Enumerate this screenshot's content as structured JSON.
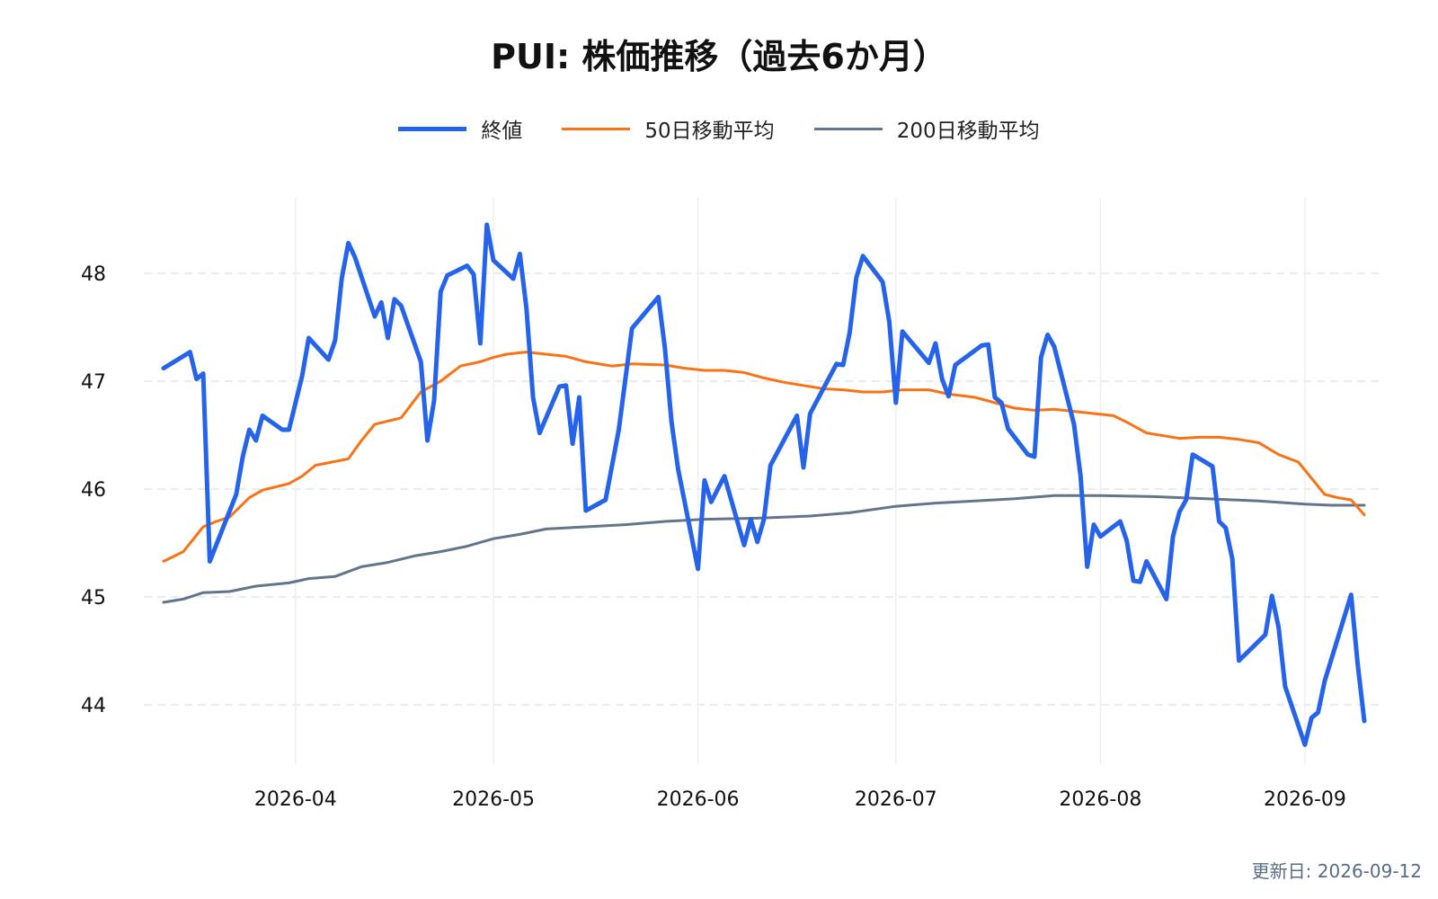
{
  "chart_data": {
    "type": "line",
    "title": "PUI: 株価推移（過去6か月）",
    "xlabel": "",
    "ylabel": "",
    "ylim": [
      43.45,
      48.7
    ],
    "xlim": [
      "2026-03-09",
      "2026-09-13"
    ],
    "y_ticks": [
      44,
      45,
      46,
      47,
      48
    ],
    "y_tick_labels": [
      "44",
      "45",
      "46",
      "47",
      "48"
    ],
    "x_ticks": [
      "2026-04-01",
      "2026-05-01",
      "2026-06-01",
      "2026-07-01",
      "2026-08-01",
      "2026-09-01"
    ],
    "x_tick_labels": [
      "2026-04",
      "2026-05",
      "2026-06",
      "2026-07",
      "2026-08",
      "2026-09"
    ],
    "grid": {
      "horizontal": "dashed",
      "vertical": "solid-light"
    },
    "legend_position": "top-center",
    "series": [
      {
        "name": "終値",
        "color": "#2563eb",
        "points": [
          [
            "2026-03-12",
            47.12
          ],
          [
            "2026-03-16",
            47.27
          ],
          [
            "2026-03-17",
            47.02
          ],
          [
            "2026-03-18",
            47.07
          ],
          [
            "2026-03-19",
            45.33
          ],
          [
            "2026-03-23",
            45.95
          ],
          [
            "2026-03-24",
            46.3
          ],
          [
            "2026-03-25",
            46.55
          ],
          [
            "2026-03-26",
            46.45
          ],
          [
            "2026-03-27",
            46.68
          ],
          [
            "2026-03-30",
            46.55
          ],
          [
            "2026-03-31",
            46.55
          ],
          [
            "2026-04-02",
            47.05
          ],
          [
            "2026-04-03",
            47.4
          ],
          [
            "2026-04-06",
            47.2
          ],
          [
            "2026-04-07",
            47.38
          ],
          [
            "2026-04-08",
            47.95
          ],
          [
            "2026-04-09",
            48.28
          ],
          [
            "2026-04-10",
            48.15
          ],
          [
            "2026-04-13",
            47.6
          ],
          [
            "2026-04-14",
            47.73
          ],
          [
            "2026-04-15",
            47.4
          ],
          [
            "2026-04-16",
            47.76
          ],
          [
            "2026-04-17",
            47.7
          ],
          [
            "2026-04-20",
            47.18
          ],
          [
            "2026-04-21",
            46.45
          ],
          [
            "2026-04-22",
            46.82
          ],
          [
            "2026-04-23",
            47.83
          ],
          [
            "2026-04-24",
            47.98
          ],
          [
            "2026-04-27",
            48.07
          ],
          [
            "2026-04-28",
            47.99
          ],
          [
            "2026-04-29",
            47.35
          ],
          [
            "2026-04-30",
            48.45
          ],
          [
            "2026-05-01",
            48.12
          ],
          [
            "2026-05-04",
            47.95
          ],
          [
            "2026-05-05",
            48.18
          ],
          [
            "2026-05-06",
            47.68
          ],
          [
            "2026-05-07",
            46.85
          ],
          [
            "2026-05-08",
            46.52
          ],
          [
            "2026-05-11",
            46.95
          ],
          [
            "2026-05-12",
            46.96
          ],
          [
            "2026-05-13",
            46.42
          ],
          [
            "2026-05-14",
            46.85
          ],
          [
            "2026-05-15",
            45.8
          ],
          [
            "2026-05-18",
            45.9
          ],
          [
            "2026-05-20",
            46.55
          ],
          [
            "2026-05-22",
            47.49
          ],
          [
            "2026-05-26",
            47.78
          ],
          [
            "2026-05-27",
            47.3
          ],
          [
            "2026-05-28",
            46.62
          ],
          [
            "2026-05-29",
            46.18
          ],
          [
            "2026-06-01",
            45.26
          ],
          [
            "2026-06-02",
            46.08
          ],
          [
            "2026-06-03",
            45.88
          ],
          [
            "2026-06-05",
            46.12
          ],
          [
            "2026-06-08",
            45.48
          ],
          [
            "2026-06-09",
            45.72
          ],
          [
            "2026-06-10",
            45.51
          ],
          [
            "2026-06-11",
            45.72
          ],
          [
            "2026-06-12",
            46.22
          ],
          [
            "2026-06-16",
            46.68
          ],
          [
            "2026-06-17",
            46.2
          ],
          [
            "2026-06-18",
            46.7
          ],
          [
            "2026-06-22",
            47.16
          ],
          [
            "2026-06-23",
            47.15
          ],
          [
            "2026-06-24",
            47.45
          ],
          [
            "2026-06-25",
            47.96
          ],
          [
            "2026-06-26",
            48.16
          ],
          [
            "2026-06-29",
            47.92
          ],
          [
            "2026-06-30",
            47.55
          ],
          [
            "2026-07-01",
            46.8
          ],
          [
            "2026-07-02",
            47.46
          ],
          [
            "2026-07-06",
            47.17
          ],
          [
            "2026-07-07",
            47.35
          ],
          [
            "2026-07-08",
            47.02
          ],
          [
            "2026-07-09",
            46.86
          ],
          [
            "2026-07-10",
            47.15
          ],
          [
            "2026-07-14",
            47.33
          ],
          [
            "2026-07-15",
            47.34
          ],
          [
            "2026-07-16",
            46.85
          ],
          [
            "2026-07-17",
            46.8
          ],
          [
            "2026-07-18",
            46.56
          ],
          [
            "2026-07-21",
            46.32
          ],
          [
            "2026-07-22",
            46.3
          ],
          [
            "2026-07-23",
            47.22
          ],
          [
            "2026-07-24",
            47.43
          ],
          [
            "2026-07-25",
            47.32
          ],
          [
            "2026-07-28",
            46.6
          ],
          [
            "2026-07-29",
            46.12
          ],
          [
            "2026-07-30",
            45.28
          ],
          [
            "2026-07-31",
            45.67
          ],
          [
            "2026-08-01",
            45.56
          ],
          [
            "2026-08-04",
            45.7
          ],
          [
            "2026-08-05",
            45.52
          ],
          [
            "2026-08-06",
            45.15
          ],
          [
            "2026-08-07",
            45.14
          ],
          [
            "2026-08-08",
            45.33
          ],
          [
            "2026-08-11",
            44.98
          ],
          [
            "2026-08-12",
            45.56
          ],
          [
            "2026-08-13",
            45.79
          ],
          [
            "2026-08-14",
            45.9
          ],
          [
            "2026-08-15",
            46.32
          ],
          [
            "2026-08-18",
            46.21
          ],
          [
            "2026-08-19",
            45.7
          ],
          [
            "2026-08-20",
            45.64
          ],
          [
            "2026-08-21",
            45.35
          ],
          [
            "2026-08-22",
            44.41
          ],
          [
            "2026-08-26",
            44.65
          ],
          [
            "2026-08-27",
            45.01
          ],
          [
            "2026-08-28",
            44.72
          ],
          [
            "2026-08-29",
            44.17
          ],
          [
            "2026-09-01",
            43.63
          ],
          [
            "2026-09-02",
            43.88
          ],
          [
            "2026-09-03",
            43.93
          ],
          [
            "2026-09-04",
            44.22
          ],
          [
            "2026-09-08",
            45.02
          ],
          [
            "2026-09-09",
            44.38
          ],
          [
            "2026-09-10",
            43.85
          ]
        ]
      },
      {
        "name": "50日移動平均",
        "color": "#f97316",
        "points": [
          [
            "2026-03-12",
            45.33
          ],
          [
            "2026-03-15",
            45.42
          ],
          [
            "2026-03-18",
            45.65
          ],
          [
            "2026-03-20",
            45.7
          ],
          [
            "2026-03-22",
            45.74
          ],
          [
            "2026-03-25",
            45.92
          ],
          [
            "2026-03-27",
            45.99
          ],
          [
            "2026-03-31",
            46.05
          ],
          [
            "2026-04-02",
            46.12
          ],
          [
            "2026-04-04",
            46.22
          ],
          [
            "2026-04-09",
            46.28
          ],
          [
            "2026-04-11",
            46.45
          ],
          [
            "2026-04-13",
            46.6
          ],
          [
            "2026-04-17",
            46.66
          ],
          [
            "2026-04-20",
            46.9
          ],
          [
            "2026-04-23",
            47.0
          ],
          [
            "2026-04-26",
            47.14
          ],
          [
            "2026-04-29",
            47.18
          ],
          [
            "2026-05-01",
            47.22
          ],
          [
            "2026-05-03",
            47.25
          ],
          [
            "2026-05-06",
            47.27
          ],
          [
            "2026-05-09",
            47.25
          ],
          [
            "2026-05-12",
            47.23
          ],
          [
            "2026-05-15",
            47.18
          ],
          [
            "2026-05-19",
            47.14
          ],
          [
            "2026-05-22",
            47.16
          ],
          [
            "2026-05-27",
            47.15
          ],
          [
            "2026-05-30",
            47.12
          ],
          [
            "2026-06-02",
            47.1
          ],
          [
            "2026-06-05",
            47.1
          ],
          [
            "2026-06-08",
            47.08
          ],
          [
            "2026-06-11",
            47.03
          ],
          [
            "2026-06-14",
            46.99
          ],
          [
            "2026-06-17",
            46.96
          ],
          [
            "2026-06-20",
            46.93
          ],
          [
            "2026-06-23",
            46.92
          ],
          [
            "2026-06-26",
            46.9
          ],
          [
            "2026-06-29",
            46.9
          ],
          [
            "2026-07-02",
            46.92
          ],
          [
            "2026-07-06",
            46.92
          ],
          [
            "2026-07-09",
            46.88
          ],
          [
            "2026-07-13",
            46.85
          ],
          [
            "2026-07-16",
            46.8
          ],
          [
            "2026-07-19",
            46.75
          ],
          [
            "2026-07-22",
            46.73
          ],
          [
            "2026-07-25",
            46.74
          ],
          [
            "2026-07-28",
            46.72
          ],
          [
            "2026-07-31",
            46.7
          ],
          [
            "2026-08-03",
            46.68
          ],
          [
            "2026-08-05",
            46.62
          ],
          [
            "2026-08-08",
            46.52
          ],
          [
            "2026-08-11",
            46.49
          ],
          [
            "2026-08-13",
            46.47
          ],
          [
            "2026-08-16",
            46.48
          ],
          [
            "2026-08-19",
            46.48
          ],
          [
            "2026-08-22",
            46.46
          ],
          [
            "2026-08-25",
            46.43
          ],
          [
            "2026-08-28",
            46.32
          ],
          [
            "2026-08-31",
            46.25
          ],
          [
            "2026-09-02",
            46.1
          ],
          [
            "2026-09-04",
            45.95
          ],
          [
            "2026-09-06",
            45.92
          ],
          [
            "2026-09-08",
            45.9
          ],
          [
            "2026-09-10",
            45.76
          ]
        ]
      },
      {
        "name": "200日移動平均",
        "color": "#64748b",
        "points": [
          [
            "2026-03-12",
            44.95
          ],
          [
            "2026-03-15",
            44.98
          ],
          [
            "2026-03-18",
            45.04
          ],
          [
            "2026-03-22",
            45.05
          ],
          [
            "2026-03-26",
            45.1
          ],
          [
            "2026-03-31",
            45.13
          ],
          [
            "2026-04-03",
            45.17
          ],
          [
            "2026-04-07",
            45.19
          ],
          [
            "2026-04-11",
            45.28
          ],
          [
            "2026-04-15",
            45.32
          ],
          [
            "2026-04-19",
            45.38
          ],
          [
            "2026-04-23",
            45.42
          ],
          [
            "2026-04-27",
            45.47
          ],
          [
            "2026-05-01",
            45.54
          ],
          [
            "2026-05-05",
            45.58
          ],
          [
            "2026-05-09",
            45.63
          ],
          [
            "2026-05-15",
            45.65
          ],
          [
            "2026-05-21",
            45.67
          ],
          [
            "2026-05-27",
            45.7
          ],
          [
            "2026-06-02",
            45.72
          ],
          [
            "2026-06-10",
            45.73
          ],
          [
            "2026-06-18",
            45.75
          ],
          [
            "2026-06-24",
            45.78
          ],
          [
            "2026-07-01",
            45.84
          ],
          [
            "2026-07-07",
            45.87
          ],
          [
            "2026-07-13",
            45.89
          ],
          [
            "2026-07-19",
            45.91
          ],
          [
            "2026-07-25",
            45.94
          ],
          [
            "2026-08-01",
            45.94
          ],
          [
            "2026-08-09",
            45.93
          ],
          [
            "2026-08-17",
            45.91
          ],
          [
            "2026-08-25",
            45.89
          ],
          [
            "2026-09-01",
            45.86
          ],
          [
            "2026-09-05",
            45.85
          ],
          [
            "2026-09-10",
            45.85
          ]
        ]
      }
    ]
  },
  "footer": {
    "updated": "更新日: 2026-09-12"
  }
}
